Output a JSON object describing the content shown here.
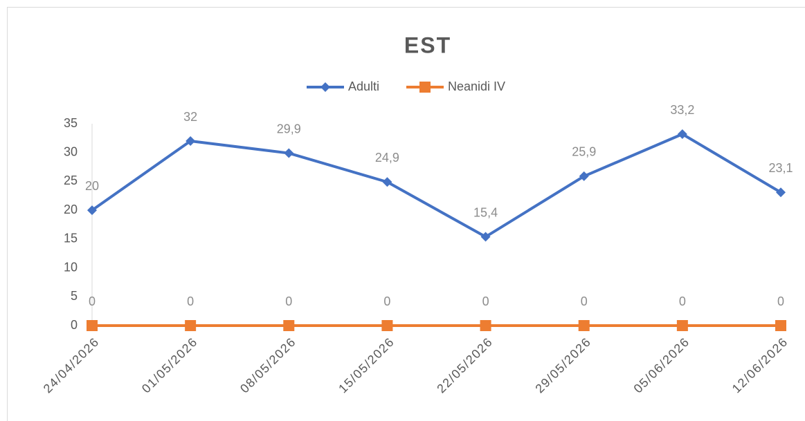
{
  "chart_data": {
    "type": "line",
    "title": "EST",
    "categories": [
      "24/04/2026",
      "01/05/2026",
      "08/05/2026",
      "15/05/2026",
      "22/05/2026",
      "29/05/2026",
      "05/06/2026",
      "12/06/2026"
    ],
    "series": [
      {
        "name": "Adulti",
        "color": "#4472c4",
        "marker": "diamond",
        "values": [
          20,
          32,
          29.9,
          24.9,
          15.4,
          25.9,
          33.2,
          23.1
        ],
        "value_labels": [
          "20",
          "32",
          "29,9",
          "24,9",
          "15,4",
          "25,9",
          "33,2",
          "23,1"
        ]
      },
      {
        "name": "Neanidi IV",
        "color": "#ed7d31",
        "marker": "square",
        "values": [
          0,
          0,
          0,
          0,
          0,
          0,
          0,
          0
        ]
      }
    ],
    "ylim": [
      0,
      35
    ],
    "yticks": [
      0,
      5,
      10,
      15,
      20,
      25,
      30,
      35
    ],
    "grid": false,
    "legend": "top"
  }
}
